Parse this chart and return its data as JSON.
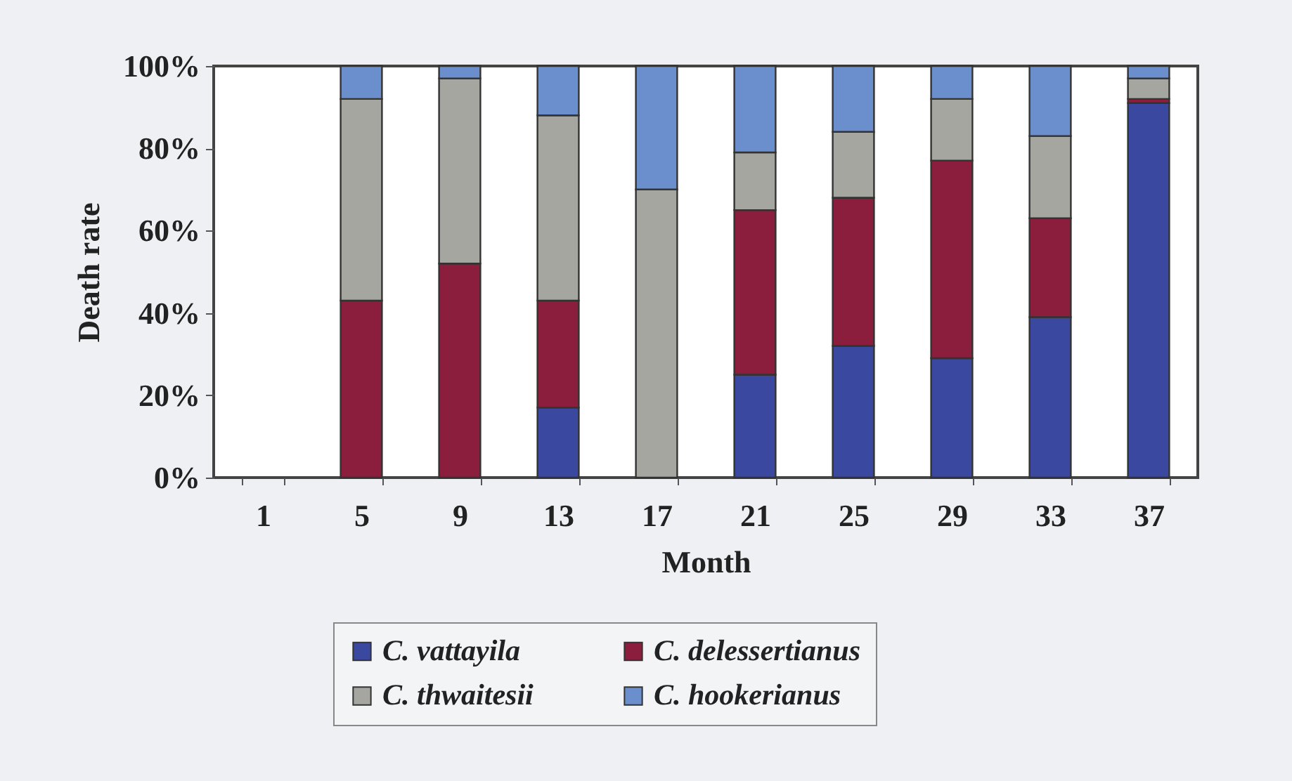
{
  "chart_data": {
    "type": "bar",
    "stacked": true,
    "xlabel": "Month",
    "ylabel": "Death rate",
    "categories": [
      "1",
      "5",
      "9",
      "13",
      "17",
      "21",
      "25",
      "29",
      "33",
      "37"
    ],
    "series": [
      {
        "name": "C. vattayila",
        "color": "#3a48a0",
        "values": [
          0,
          0,
          0,
          17,
          0,
          25,
          32,
          29,
          39,
          91
        ]
      },
      {
        "name": "C. delessertianus",
        "color": "#8a1e3c",
        "values": [
          0,
          43,
          52,
          26,
          0,
          40,
          36,
          48,
          24,
          1
        ]
      },
      {
        "name": "C. thwaitesii",
        "color": "#a6a6a0",
        "values": [
          0,
          49,
          45,
          45,
          70,
          14,
          16,
          15,
          20,
          5
        ]
      },
      {
        "name": "C. hookerianus",
        "color": "#6a8fcc",
        "values": [
          0,
          8,
          3,
          12,
          30,
          21,
          16,
          8,
          17,
          3
        ]
      }
    ],
    "ylim": [
      0,
      100
    ],
    "yticks": [
      {
        "value": 0,
        "label": "0%"
      },
      {
        "value": 20,
        "label": "20%"
      },
      {
        "value": 40,
        "label": "40%"
      },
      {
        "value": 60,
        "label": "60%"
      },
      {
        "value": 80,
        "label": "80%"
      },
      {
        "value": 100,
        "label": "100%"
      }
    ],
    "grid": false,
    "legend": "bottom"
  }
}
